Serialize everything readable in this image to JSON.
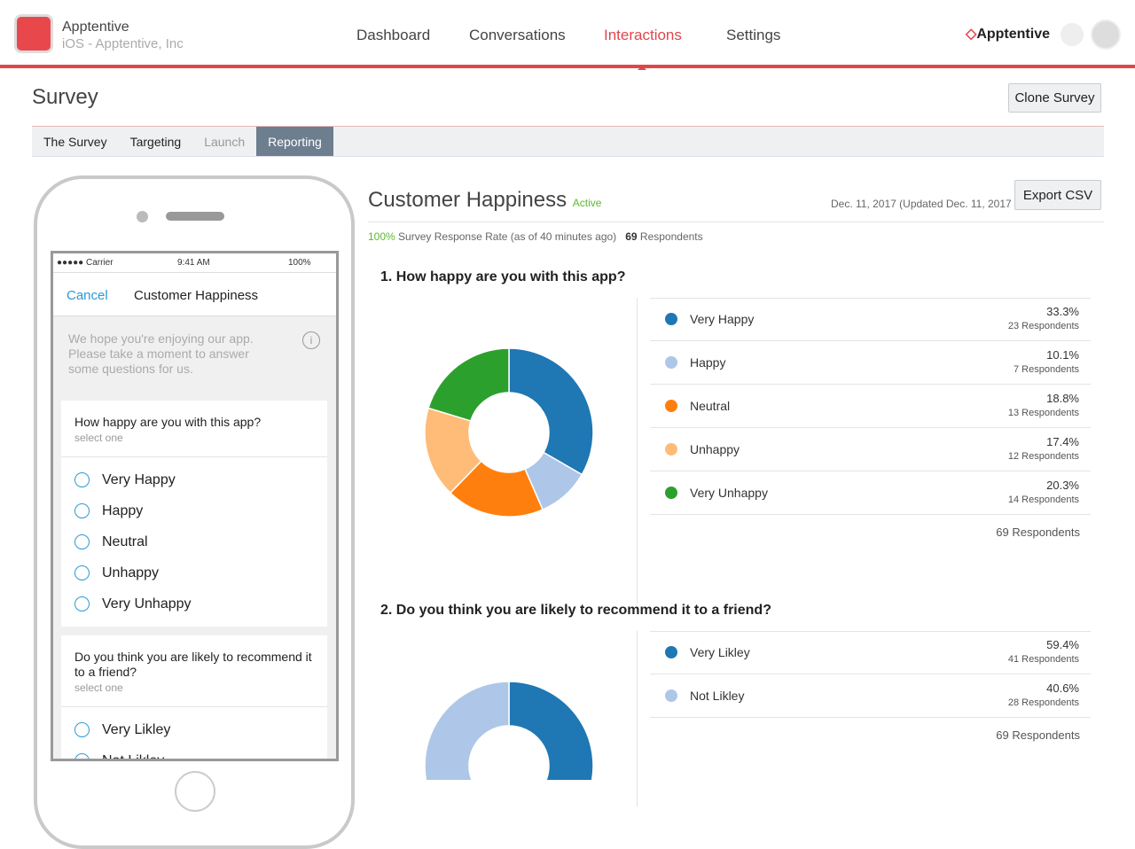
{
  "header": {
    "app_name": "Apptentive",
    "app_sub": "iOS - Apptentive, Inc",
    "nav": [
      "Dashboard",
      "Conversations",
      "Interactions",
      "Settings"
    ],
    "active_nav": 2,
    "brand": "Apptentive"
  },
  "page": {
    "title": "Survey",
    "clone": "Clone Survey",
    "tabs": [
      "The Survey",
      "Targeting",
      "Launch",
      "Reporting"
    ]
  },
  "phone": {
    "carrier": "●●●●● Carrier",
    "time": "9:41 AM",
    "battery": "100%",
    "cancel": "Cancel",
    "title": "Customer Happiness",
    "intro": "We hope you're enjoying our app. Please take a moment to answer some questions for us.",
    "questions": [
      {
        "text": "How happy are you with this app?",
        "hint": "select one",
        "options": [
          "Very Happy",
          "Happy",
          "Neutral",
          "Unhappy",
          "Very Unhappy"
        ]
      },
      {
        "text": "Do you think you are likely to recommend it to a friend?",
        "hint": "select one",
        "options": [
          "Very Likley",
          "Not Likley"
        ]
      }
    ]
  },
  "report": {
    "title": "Customer Happiness",
    "status": "Active",
    "date": "Dec. 11, 2017 (Updated Dec. 11, 2017 )",
    "export": "Export CSV",
    "rate": "100%",
    "rate_text": "Survey Response Rate (as of 40 minutes ago)",
    "respondents": "69",
    "respondents_label": "Respondents"
  },
  "chart_data": [
    {
      "type": "pie",
      "title": "1. How happy are you with this app?",
      "categories": [
        "Very Happy",
        "Happy",
        "Neutral",
        "Unhappy",
        "Very Unhappy"
      ],
      "values": [
        33.3,
        10.1,
        18.8,
        17.4,
        20.3
      ],
      "value_labels": [
        "33.3%",
        "10.1%",
        "18.8%",
        "17.4%",
        "20.3%"
      ],
      "counts": [
        23,
        7,
        13,
        12,
        14
      ],
      "count_label": "Respondents",
      "total": 69,
      "colors": [
        "#1f77b4",
        "#aec7e8",
        "#ff7f0e",
        "#ffbb78",
        "#2ca02c"
      ]
    },
    {
      "type": "pie",
      "title": "2. Do you think you are likely to recommend it to a friend?",
      "categories": [
        "Very Likley",
        "Not Likley"
      ],
      "values": [
        59.4,
        40.6
      ],
      "value_labels": [
        "59.4%",
        "40.6%"
      ],
      "counts": [
        41,
        28
      ],
      "count_label": "Respondents",
      "total": 69,
      "colors": [
        "#1f77b4",
        "#aec7e8"
      ]
    }
  ]
}
